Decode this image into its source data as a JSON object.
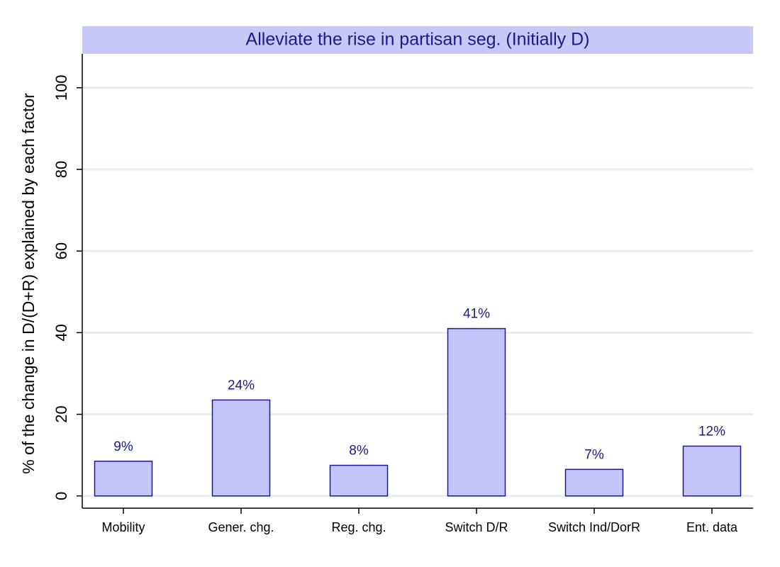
{
  "chart_data": {
    "type": "bar",
    "title": "Alleviate the rise in partisan seg. (Initially D)",
    "y_label": "% of the change in D/(D+R) explained by each factor",
    "categories": [
      "Mobility",
      "Gener. chg.",
      "Reg. chg.",
      "Switch D/R",
      "Switch Ind/DorR",
      "Ent. data"
    ],
    "values": [
      8.5,
      23.5,
      7.5,
      41,
      6.5,
      12.2
    ],
    "value_labels": [
      "9%",
      "24%",
      "8%",
      "41%",
      "7%",
      "12%"
    ],
    "color": "#c4c4fa",
    "ylim": [
      -3,
      108.3
    ],
    "yticks": [
      0,
      20,
      40,
      60,
      80,
      100
    ],
    "grid": true
  }
}
